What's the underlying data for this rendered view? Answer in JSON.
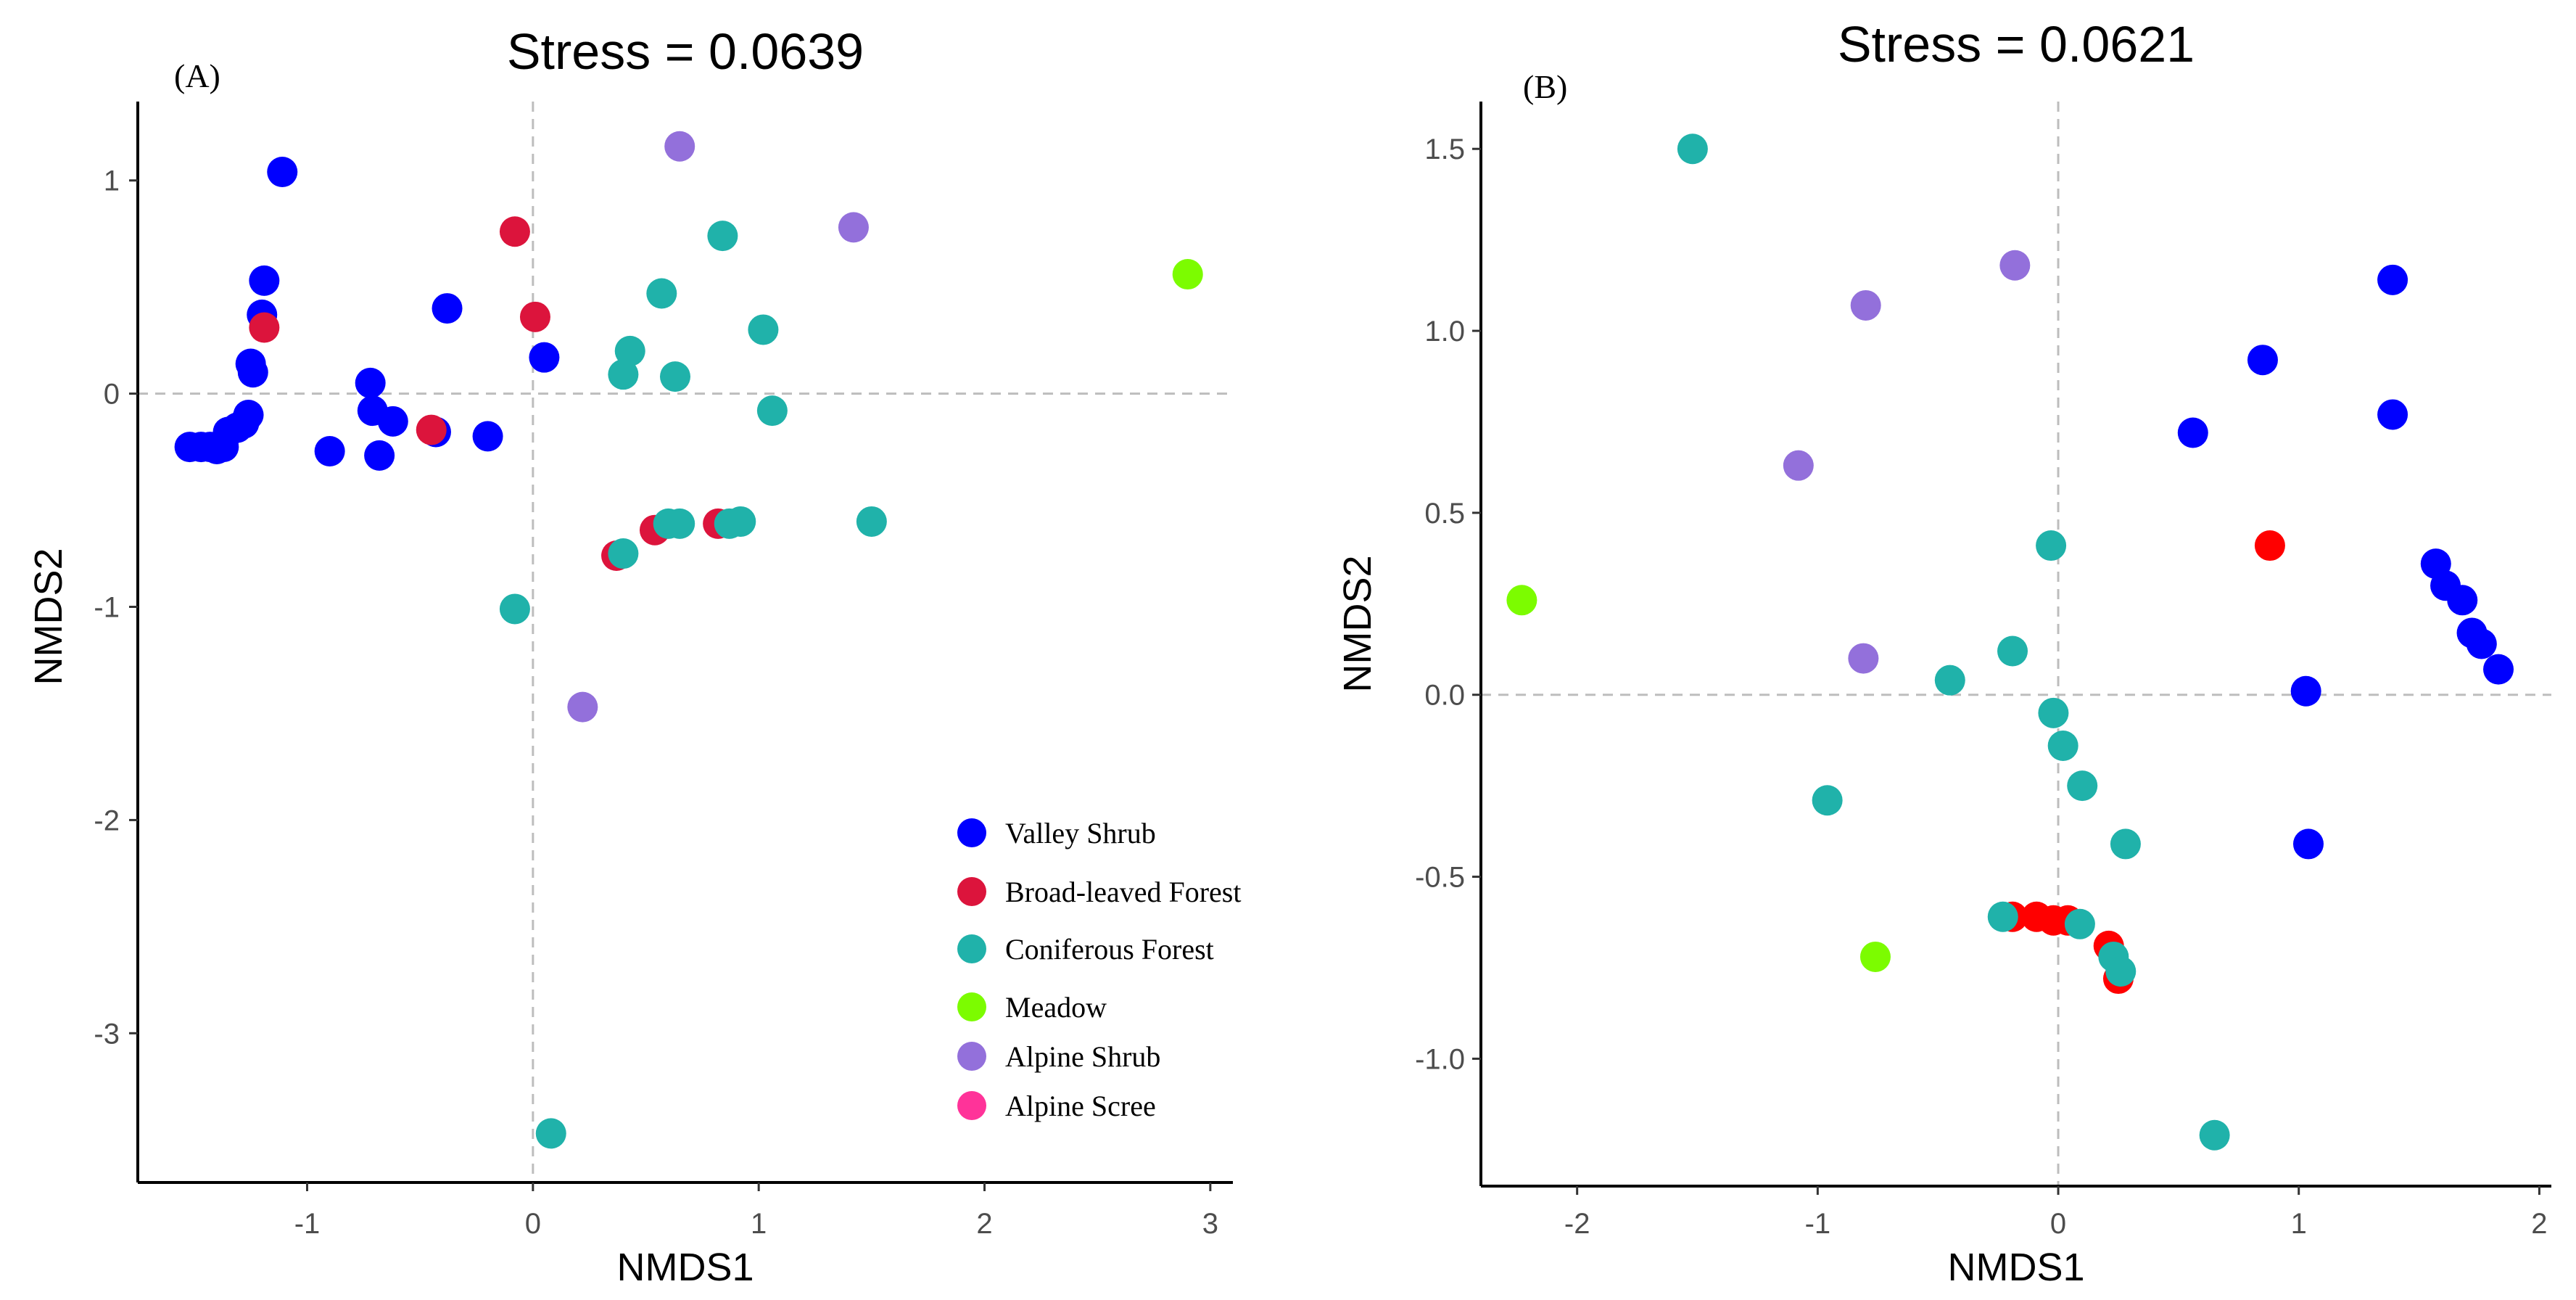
{
  "legend": [
    {
      "label": "Valley Shrub",
      "color": "#0000FF"
    },
    {
      "label": "Broad-leaved Forest",
      "color": "#DC143C"
    },
    {
      "label": "Coniferous Forest",
      "color": "#20B2AA"
    },
    {
      "label": "Meadow",
      "color": "#7CFC00"
    },
    {
      "label": "Alpine Shrub",
      "color": "#9370DB"
    },
    {
      "label": "Alpine Scree",
      "color": "#FF3399"
    }
  ],
  "chart_data": [
    {
      "type": "scatter",
      "panel_label": "(A)",
      "title": "Stress = 0.0639",
      "xlabel": "NMDS1",
      "ylabel": "NMDS2",
      "xlim": [
        -1.75,
        3.1
      ],
      "ylim": [
        -3.7,
        1.37
      ],
      "xticks": [
        -1,
        0,
        1,
        2,
        3
      ],
      "yticks": [
        1,
        0,
        -1,
        -2,
        -3
      ],
      "xtick_labels": [
        "-1",
        "0",
        "1",
        "2",
        "3"
      ],
      "ytick_labels": [
        "1",
        "0",
        "-1",
        "-2",
        "-3"
      ],
      "legend_position": "bottom-right",
      "reference_lines": {
        "x": 0,
        "y": 0
      },
      "series": [
        {
          "name": "Valley Shrub",
          "color": "#0000FF",
          "points": [
            [
              -1.52,
              -0.25
            ],
            [
              -1.47,
              -0.25
            ],
            [
              -1.43,
              -0.25
            ],
            [
              -1.4,
              -0.26
            ],
            [
              -1.37,
              -0.25
            ],
            [
              -1.35,
              -0.18
            ],
            [
              -1.31,
              -0.16
            ],
            [
              -1.28,
              -0.14
            ],
            [
              -1.26,
              -0.1
            ],
            [
              -1.24,
              0.1
            ],
            [
              -1.25,
              0.14
            ],
            [
              -1.2,
              0.37
            ],
            [
              -1.19,
              0.53
            ],
            [
              -1.11,
              1.04
            ],
            [
              -0.9,
              -0.27
            ],
            [
              -0.72,
              0.05
            ],
            [
              -0.71,
              -0.08
            ],
            [
              -0.68,
              -0.29
            ],
            [
              -0.62,
              -0.13
            ],
            [
              -0.43,
              -0.18
            ],
            [
              -0.38,
              0.4
            ],
            [
              -0.2,
              -0.2
            ],
            [
              0.05,
              0.17
            ]
          ]
        },
        {
          "name": "Broad-leaved Forest",
          "color": "#DC143C",
          "points": [
            [
              -1.19,
              0.31
            ],
            [
              -0.45,
              -0.17
            ],
            [
              -0.08,
              0.76
            ],
            [
              0.01,
              0.36
            ],
            [
              0.37,
              -0.76
            ],
            [
              0.54,
              -0.64
            ],
            [
              0.82,
              -0.61
            ]
          ]
        },
        {
          "name": "Coniferous Forest",
          "color": "#20B2AA",
          "points": [
            [
              -0.08,
              -1.01
            ],
            [
              0.08,
              -3.47
            ],
            [
              0.4,
              -0.75
            ],
            [
              0.4,
              0.09
            ],
            [
              0.43,
              0.2
            ],
            [
              0.57,
              0.47
            ],
            [
              0.6,
              -0.61
            ],
            [
              0.63,
              0.08
            ],
            [
              0.65,
              -0.61
            ],
            [
              0.84,
              0.74
            ],
            [
              0.87,
              -0.61
            ],
            [
              0.92,
              -0.6
            ],
            [
              1.02,
              0.3
            ],
            [
              1.06,
              -0.08
            ],
            [
              1.5,
              -0.6
            ]
          ]
        },
        {
          "name": "Meadow",
          "color": "#7CFC00",
          "points": [
            [
              2.9,
              0.56
            ]
          ]
        },
        {
          "name": "Alpine Shrub",
          "color": "#9370DB",
          "points": [
            [
              0.65,
              1.16
            ],
            [
              1.42,
              0.78
            ],
            [
              0.22,
              -1.47
            ]
          ]
        },
        {
          "name": "Alpine Scree",
          "color": "#FF3399",
          "points": []
        }
      ]
    },
    {
      "type": "scatter",
      "panel_label": "(B)",
      "title": "Stress = 0.0621",
      "xlabel": "NMDS1",
      "ylabel": "NMDS2",
      "xlim": [
        -2.4,
        2.05
      ],
      "ylim": [
        -1.35,
        1.63
      ],
      "xticks": [
        -2,
        -1,
        0,
        1,
        2
      ],
      "yticks": [
        1.5,
        1.0,
        0.5,
        0.0,
        -0.5,
        -1.0
      ],
      "xtick_labels": [
        "-2",
        "-1",
        "0",
        "1",
        "2"
      ],
      "ytick_labels": [
        "1.5",
        "1.0",
        "0.5",
        "0.0",
        "-0.5",
        "-1.0"
      ],
      "reference_lines": {
        "x": 0,
        "y": 0
      },
      "series": [
        {
          "name": "Valley Shrub",
          "color": "#0000FF",
          "points": [
            [
              0.56,
              0.72
            ],
            [
              0.85,
              0.92
            ],
            [
              1.03,
              0.01
            ],
            [
              1.04,
              -0.41
            ],
            [
              1.39,
              1.14
            ],
            [
              1.39,
              0.77
            ],
            [
              1.57,
              0.36
            ],
            [
              1.61,
              0.3
            ],
            [
              1.68,
              0.26
            ],
            [
              1.72,
              0.17
            ],
            [
              1.76,
              0.14
            ],
            [
              1.83,
              0.07
            ]
          ]
        },
        {
          "name": "Broad-leaved Forest",
          "color": "#FF0000",
          "points": [
            [
              0.88,
              0.41
            ],
            [
              -0.19,
              -0.61
            ],
            [
              -0.09,
              -0.61
            ],
            [
              -0.02,
              -0.62
            ],
            [
              0.04,
              -0.62
            ],
            [
              0.21,
              -0.69
            ],
            [
              0.25,
              -0.78
            ]
          ]
        },
        {
          "name": "Coniferous Forest",
          "color": "#20B2AA",
          "points": [
            [
              -1.52,
              1.5
            ],
            [
              -0.03,
              0.41
            ],
            [
              -0.19,
              0.12
            ],
            [
              -0.45,
              0.04
            ],
            [
              -0.96,
              -0.29
            ],
            [
              -0.02,
              -0.05
            ],
            [
              0.02,
              -0.14
            ],
            [
              0.1,
              -0.25
            ],
            [
              0.28,
              -0.41
            ],
            [
              -0.23,
              -0.61
            ],
            [
              0.09,
              -0.63
            ],
            [
              0.23,
              -0.72
            ],
            [
              0.26,
              -0.76
            ],
            [
              0.65,
              -1.21
            ]
          ]
        },
        {
          "name": "Meadow",
          "color": "#7CFC00",
          "points": [
            [
              -2.23,
              0.26
            ],
            [
              -0.76,
              -0.72
            ]
          ]
        },
        {
          "name": "Alpine Shrub",
          "color": "#9370DB",
          "points": [
            [
              -0.18,
              1.18
            ],
            [
              -0.8,
              1.07
            ],
            [
              -1.08,
              0.63
            ],
            [
              -0.81,
              0.1
            ]
          ]
        }
      ]
    }
  ]
}
